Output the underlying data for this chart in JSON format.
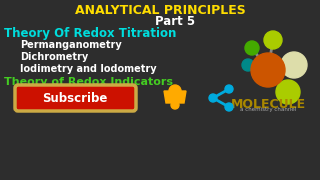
{
  "bg_color": "#2d2d2d",
  "title_text": "ANALYTICAL PRINCIPLES",
  "title_color": "#ffdd00",
  "part_text": "Part 5",
  "part_color": "#ffffff",
  "line1_text": "Theory Of Redox Titration",
  "line1_color": "#00dddd",
  "line2_text": "Permanganometry",
  "line2_color": "#ffffff",
  "line3_text": "Dichrometry",
  "line3_color": "#ffffff",
  "line4_text": "Iodimetry and Iodometry",
  "line4_color": "#ffffff",
  "line5_text": "Theory of Redox Indicators",
  "line5_color": "#44cc22",
  "subscribe_text": "Subscribe",
  "subscribe_bg": "#cc1100",
  "subscribe_border": "#ccaa44",
  "subscribe_text_color": "#ffffff",
  "molecule_text": "MOLECULE",
  "molecule_color_1": "#aa8800",
  "molecule_color_2": "#886600",
  "molecule_sub": "a chemistry channel",
  "molecule_sub_color": "#aaaaaa",
  "bell_color": "#ffaa00",
  "share_color": "#00aadd",
  "atom_orange": "#cc5500",
  "atom_yellow_green": "#aacc00",
  "atom_green": "#44aa00",
  "atom_teal": "#008888",
  "atom_cream": "#ddddaa",
  "atom_stem": "#888888"
}
